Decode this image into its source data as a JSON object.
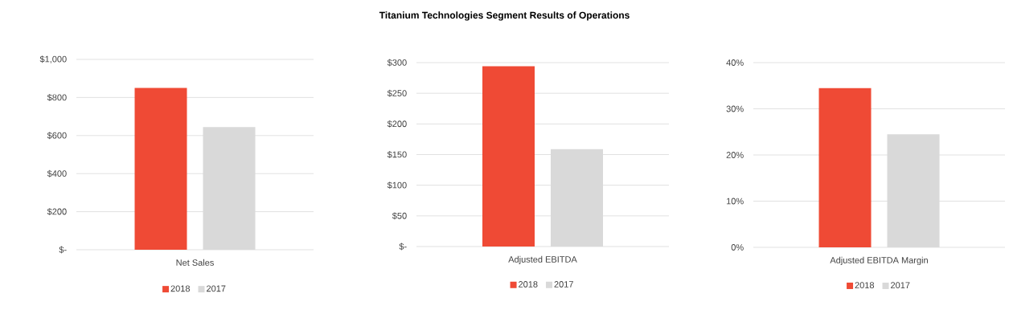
{
  "chart_data": [
    {
      "type": "bar",
      "categories": [
        "Net Sales"
      ],
      "series": [
        {
          "name": "2018",
          "color": "#ef4a35",
          "values": [
            850
          ]
        },
        {
          "name": "2017",
          "color": "#d9d9d9",
          "values": [
            645
          ]
        }
      ],
      "ylim": [
        0,
        1000
      ],
      "yticks": [
        {
          "value": 0,
          "label": "$-"
        },
        {
          "value": 200,
          "label": "$200"
        },
        {
          "value": 400,
          "label": "$400"
        },
        {
          "value": 600,
          "label": "$600"
        },
        {
          "value": 800,
          "label": "$800"
        },
        {
          "value": 1000,
          "label": "$1,000"
        }
      ],
      "grid": "y",
      "legend": "bottom"
    },
    {
      "type": "bar",
      "title": "Titanium Technologies Segment Results of Operations",
      "categories": [
        "Adjusted EBITDA"
      ],
      "series": [
        {
          "name": "2018",
          "color": "#ef4a35",
          "values": [
            294
          ]
        },
        {
          "name": "2017",
          "color": "#d9d9d9",
          "values": [
            159
          ]
        }
      ],
      "ylim": [
        0,
        300
      ],
      "yticks": [
        {
          "value": 0,
          "label": "$-"
        },
        {
          "value": 50,
          "label": "$50"
        },
        {
          "value": 100,
          "label": "$100"
        },
        {
          "value": 150,
          "label": "$150"
        },
        {
          "value": 200,
          "label": "$200"
        },
        {
          "value": 250,
          "label": "$250"
        },
        {
          "value": 300,
          "label": "$300"
        }
      ],
      "grid": "y",
      "legend": "bottom"
    },
    {
      "type": "bar",
      "categories": [
        "Adjusted EBITDA Margin"
      ],
      "series": [
        {
          "name": "2018",
          "color": "#ef4a35",
          "values": [
            34.5
          ]
        },
        {
          "name": "2017",
          "color": "#d9d9d9",
          "values": [
            24.5
          ]
        }
      ],
      "ylim": [
        0,
        40
      ],
      "yticks": [
        {
          "value": 0,
          "label": "0%"
        },
        {
          "value": 10,
          "label": "10%"
        },
        {
          "value": 20,
          "label": "20%"
        },
        {
          "value": 30,
          "label": "30%"
        },
        {
          "value": 40,
          "label": "40%"
        }
      ],
      "grid": "y",
      "legend": "bottom"
    }
  ]
}
